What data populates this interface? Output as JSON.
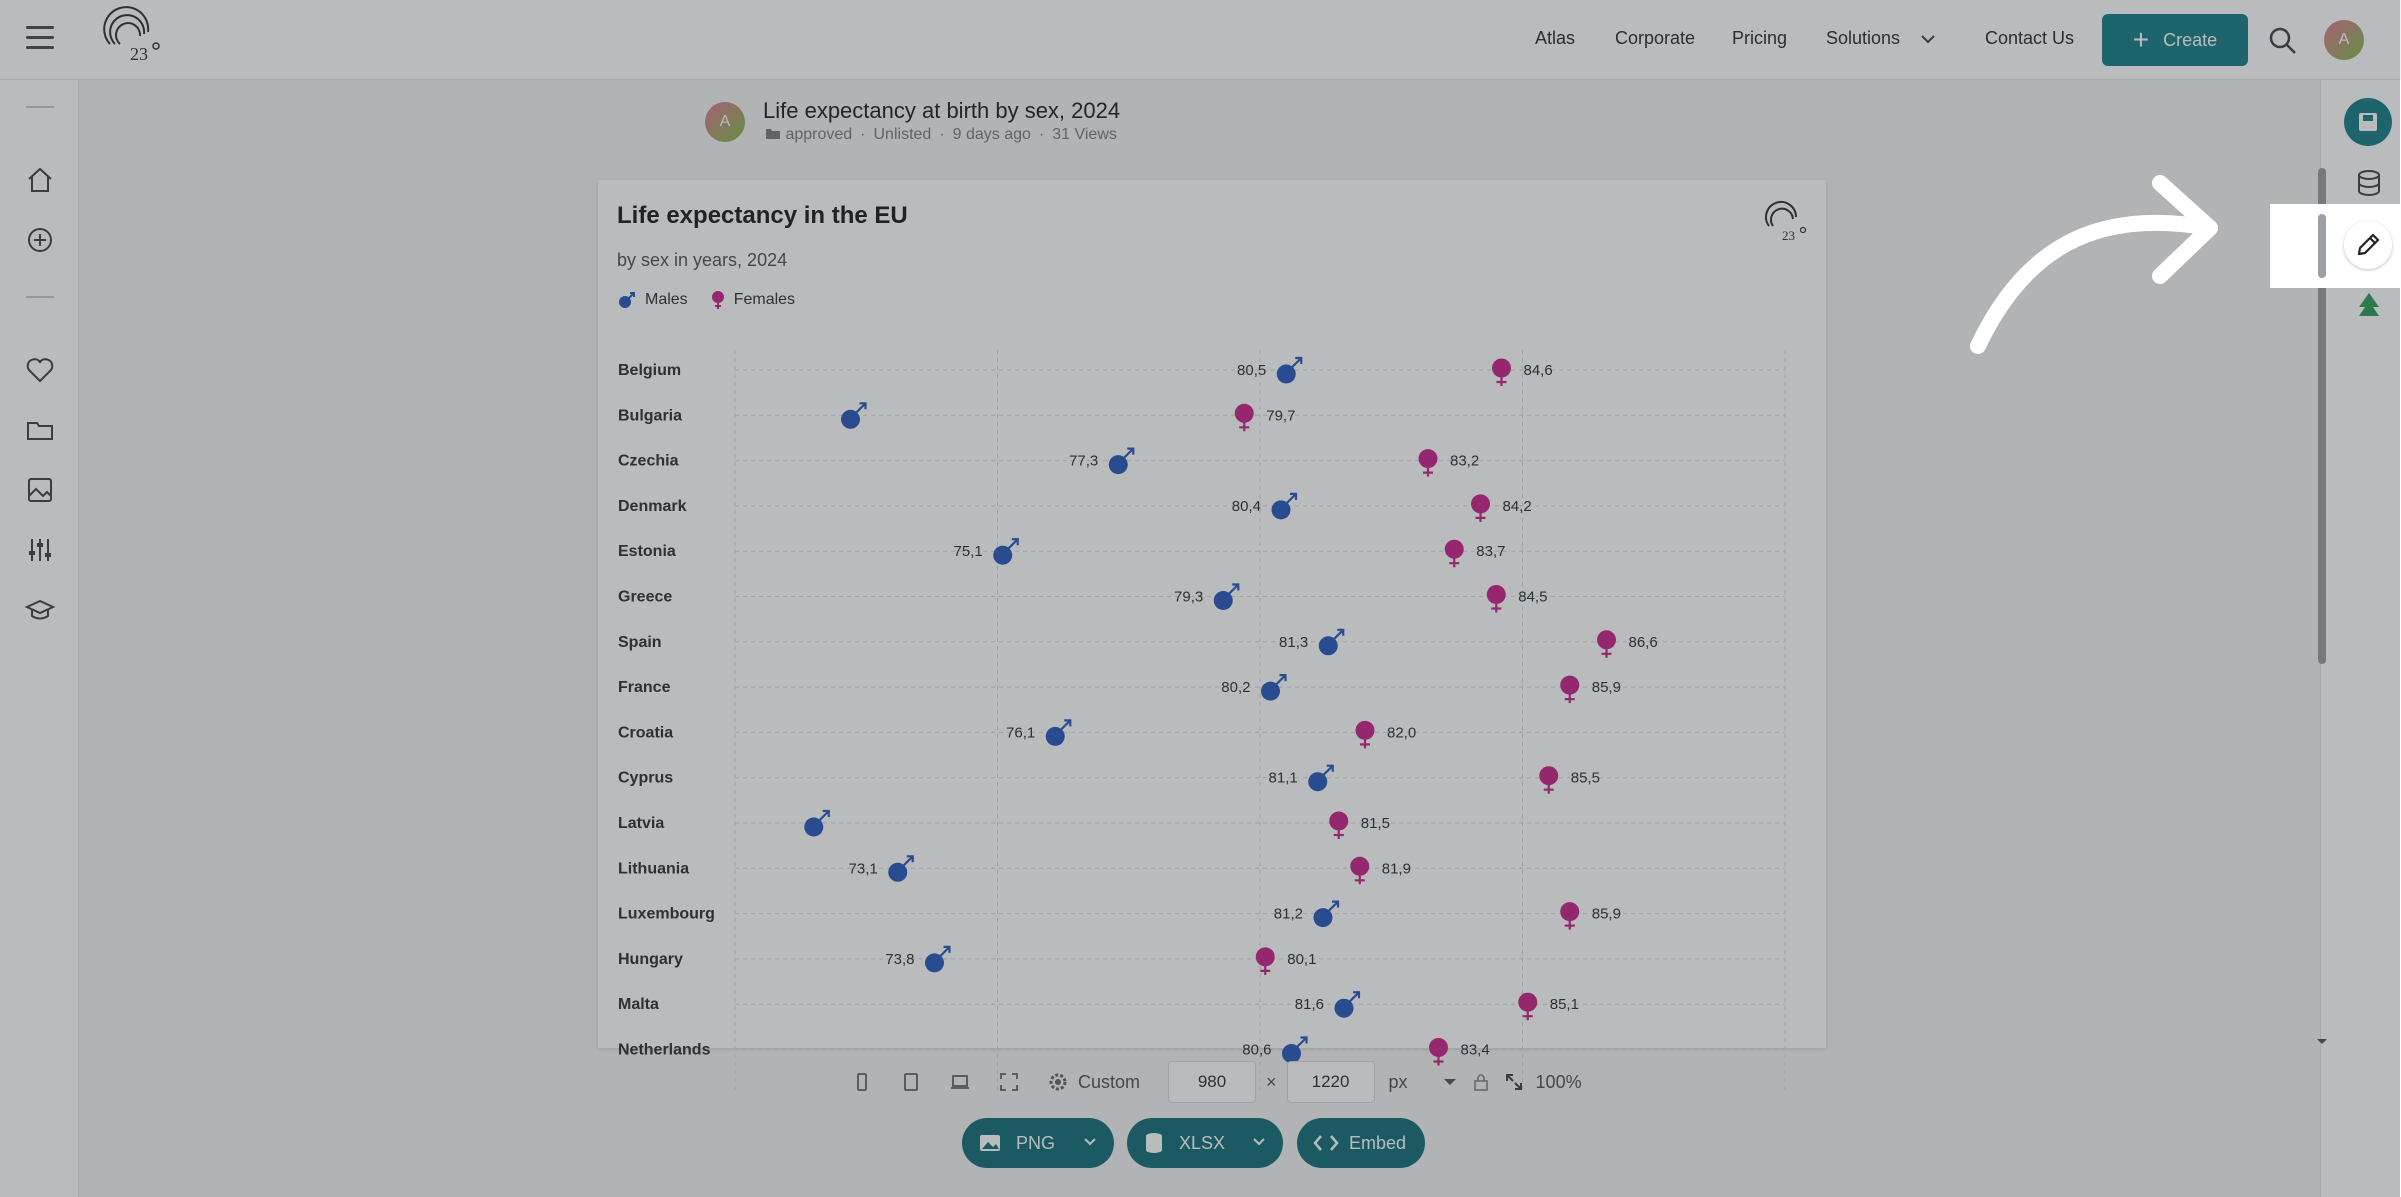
{
  "header": {
    "nav": [
      "Atlas",
      "Corporate",
      "Pricing",
      "Solutions",
      "Contact Us"
    ],
    "create_label": "Create",
    "avatar_initial": "A"
  },
  "document": {
    "title": "Life expectancy at birth by sex, 2024",
    "author_initial": "A",
    "status": "approved",
    "visibility": "Unlisted",
    "age": "9 days ago",
    "views": "31 Views"
  },
  "chart_data": {
    "type": "scatter",
    "title": "Life expectancy in the EU",
    "subtitle": "by sex in years, 2024",
    "categories": [
      "Belgium",
      "Bulgaria",
      "Czechia",
      "Denmark",
      "Estonia",
      "Greece",
      "Spain",
      "France",
      "Croatia",
      "Cyprus",
      "Latvia",
      "Lithuania",
      "Luxembourg",
      "Hungary",
      "Malta",
      "Netherlands"
    ],
    "series": [
      {
        "name": "Males",
        "color": "#2a5cbf",
        "values": [
          80.5,
          72.2,
          77.3,
          80.4,
          75.1,
          79.3,
          81.3,
          80.2,
          76.1,
          81.1,
          71.5,
          73.1,
          81.2,
          73.8,
          81.6,
          80.6
        ],
        "labels": [
          "80,5",
          "",
          "77,3",
          "80,4",
          "75,1",
          "79,3",
          "81,3",
          "80,2",
          "76,1",
          "81,1",
          "",
          "73,1",
          "81,2",
          "73,8",
          "81,6",
          "80,6"
        ]
      },
      {
        "name": "Females",
        "color": "#c9258c",
        "values": [
          84.6,
          79.7,
          83.2,
          84.2,
          83.7,
          84.5,
          86.6,
          85.9,
          82.0,
          85.5,
          81.5,
          81.9,
          85.9,
          80.1,
          85.1,
          83.4
        ],
        "labels": [
          "84,6",
          "79,7",
          "83,2",
          "84,2",
          "83,7",
          "84,5",
          "86,6",
          "85,9",
          "82,0",
          "85,5",
          "81,5",
          "81,9",
          "85,9",
          "80,1",
          "85,1",
          "83,4"
        ]
      }
    ],
    "xlim": [
      70,
      90
    ],
    "grid": true,
    "legend_position": "top-left"
  },
  "toolbar": {
    "preset": "Custom",
    "width": "980",
    "height": "1220",
    "unit": "px",
    "zoom": "100%",
    "times": "×"
  },
  "export": {
    "png": "PNG",
    "xlsx": "XLSX",
    "embed": "Embed"
  }
}
